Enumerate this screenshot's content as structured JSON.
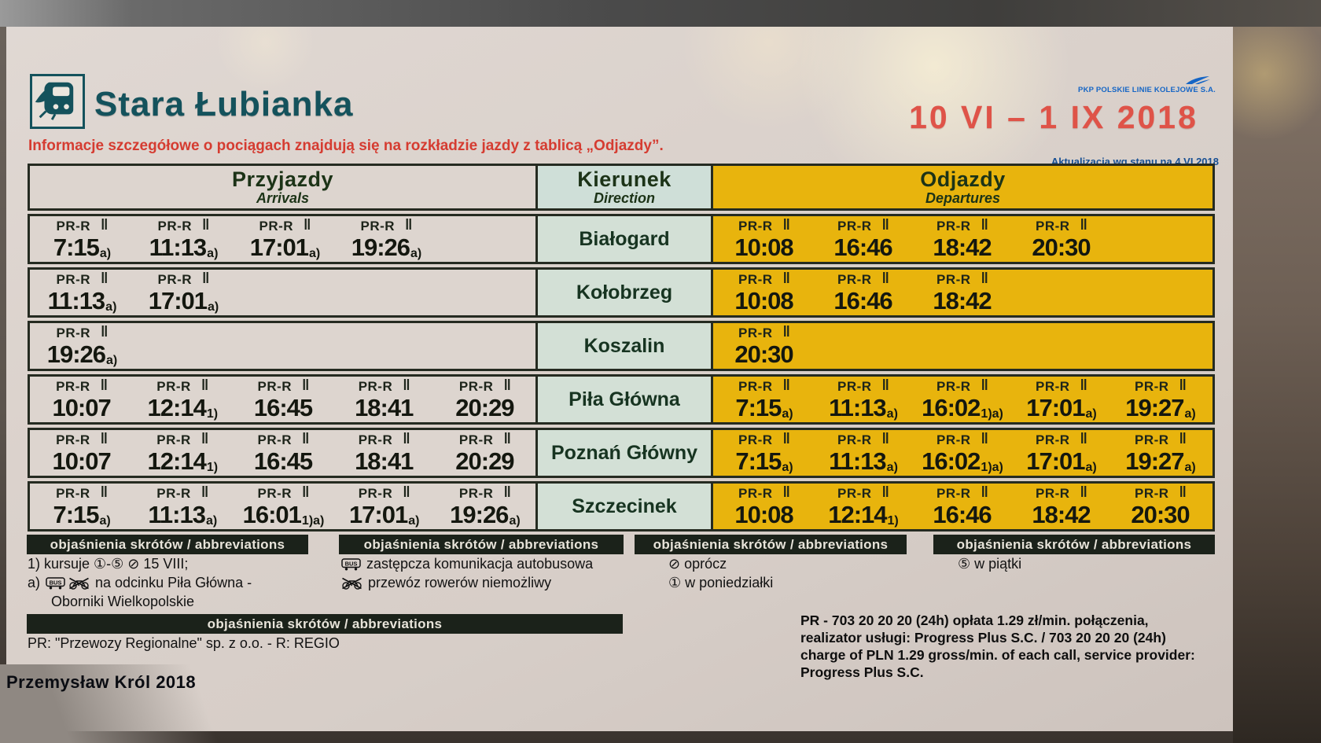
{
  "photo": {
    "watermark": "Przemysław Król 2018"
  },
  "header": {
    "station": "Stara Łubianka",
    "validity": "10 VI – 1 IX 2018",
    "notice": "Informacje szczegółowe o pociągach znajdują się na rozkładzie jazdy z tablicą „Odjazdy”.",
    "pkp_logo_text": "PKP POLSKIE LINIE KOLEJOWE S.A.",
    "update_note": "Aktualizacja wg stanu na 4 VI 2018"
  },
  "table": {
    "columns": {
      "arrivals": {
        "title": "Przyjazdy",
        "subtitle": "Arrivals"
      },
      "direction": {
        "title": "Kierunek",
        "subtitle": "Direction"
      },
      "departures": {
        "title": "Odjazdy",
        "subtitle": "Departures"
      }
    },
    "train_label": "PR-R",
    "train_symbol": "‖",
    "rows": [
      {
        "direction": "Białogard",
        "arrivals": [
          {
            "time": "7:15",
            "fn": "a)"
          },
          {
            "time": "11:13",
            "fn": "a)"
          },
          {
            "time": "17:01",
            "fn": "a)"
          },
          {
            "time": "19:26",
            "fn": "a)"
          }
        ],
        "departures": [
          {
            "time": "10:08",
            "fn": ""
          },
          {
            "time": "16:46",
            "fn": ""
          },
          {
            "time": "18:42",
            "fn": ""
          },
          {
            "time": "20:30",
            "fn": ""
          }
        ]
      },
      {
        "direction": "Kołobrzeg",
        "arrivals": [
          {
            "time": "11:13",
            "fn": "a)"
          },
          {
            "time": "17:01",
            "fn": "a)"
          }
        ],
        "departures": [
          {
            "time": "10:08",
            "fn": ""
          },
          {
            "time": "16:46",
            "fn": ""
          },
          {
            "time": "18:42",
            "fn": ""
          }
        ]
      },
      {
        "direction": "Koszalin",
        "arrivals": [
          {
            "time": "19:26",
            "fn": "a)"
          }
        ],
        "departures": [
          {
            "time": "20:30",
            "fn": ""
          }
        ]
      },
      {
        "direction": "Piła Główna",
        "arrivals": [
          {
            "time": "10:07",
            "fn": ""
          },
          {
            "time": "12:14",
            "fn": "1)"
          },
          {
            "time": "16:45",
            "fn": ""
          },
          {
            "time": "18:41",
            "fn": ""
          },
          {
            "time": "20:29",
            "fn": ""
          }
        ],
        "departures": [
          {
            "time": "7:15",
            "fn": "a)"
          },
          {
            "time": "11:13",
            "fn": "a)"
          },
          {
            "time": "16:02",
            "fn": "1)a)"
          },
          {
            "time": "17:01",
            "fn": "a)"
          },
          {
            "time": "19:27",
            "fn": "a)"
          }
        ]
      },
      {
        "direction": "Poznań Główny",
        "arrivals": [
          {
            "time": "10:07",
            "fn": ""
          },
          {
            "time": "12:14",
            "fn": "1)"
          },
          {
            "time": "16:45",
            "fn": ""
          },
          {
            "time": "18:41",
            "fn": ""
          },
          {
            "time": "20:29",
            "fn": ""
          }
        ],
        "departures": [
          {
            "time": "7:15",
            "fn": "a)"
          },
          {
            "time": "11:13",
            "fn": "a)"
          },
          {
            "time": "16:02",
            "fn": "1)a)"
          },
          {
            "time": "17:01",
            "fn": "a)"
          },
          {
            "time": "19:27",
            "fn": "a)"
          }
        ]
      },
      {
        "direction": "Szczecinek",
        "arrivals": [
          {
            "time": "7:15",
            "fn": "a)"
          },
          {
            "time": "11:13",
            "fn": "a)"
          },
          {
            "time": "16:01",
            "fn": "1)a)"
          },
          {
            "time": "17:01",
            "fn": "a)"
          },
          {
            "time": "19:26",
            "fn": "a)"
          }
        ],
        "departures": [
          {
            "time": "10:08",
            "fn": ""
          },
          {
            "time": "12:14",
            "fn": "1)"
          },
          {
            "time": "16:46",
            "fn": ""
          },
          {
            "time": "18:42",
            "fn": ""
          },
          {
            "time": "20:30",
            "fn": ""
          }
        ]
      }
    ]
  },
  "legend_blocks": [
    {
      "title": "objaśnienia skrótów / abbreviations",
      "lines": [
        {
          "seg": [
            {
              "t": "1) kursuje ①-⑤ ⊘ 15 VIII;"
            }
          ]
        },
        {
          "seg": [
            {
              "t": "a) "
            },
            {
              "i": "bus-icon"
            },
            {
              "t": " "
            },
            {
              "i": "no-bicycle-icon"
            },
            {
              "t": " na odcinku Piła Główna -"
            }
          ]
        },
        {
          "seg": [
            {
              "t": "Oborniki Wielkopolskie"
            }
          ],
          "indent": true
        }
      ]
    },
    {
      "title": "objaśnienia skrótów / abbreviations",
      "lines": [
        {
          "seg": [
            {
              "i": "bus-icon"
            },
            {
              "t": " zastępcza komunikacja autobusowa"
            }
          ]
        },
        {
          "seg": [
            {
              "i": "no-bicycle-icon"
            },
            {
              "t": " przewóz rowerów niemożliwy"
            }
          ]
        }
      ]
    },
    {
      "title": "objaśnienia skrótów / abbreviations",
      "lines": [
        {
          "seg": [
            {
              "t": "⊘ oprócz"
            }
          ]
        },
        {
          "seg": [
            {
              "t": "① w poniedziałki"
            }
          ]
        }
      ]
    },
    {
      "title": "objaśnienia skrótów / abbreviations",
      "lines": [
        {
          "seg": [
            {
              "t": "⑤ w piątki"
            }
          ]
        }
      ]
    },
    {
      "title": "objaśnienia skrótów / abbreviations",
      "lines": [
        {
          "seg": [
            {
              "t": "PR: \"Przewozy Regionalne\" sp. z o.o. - R: REGIO"
            }
          ]
        }
      ]
    }
  ],
  "footer": {
    "lines": [
      "PR - 703 20 20 20 (24h) opłata 1.29 zł/min. połączenia,",
      "realizator usługi: Progress Plus S.C.  / 703 20 20 20 (24h)",
      "charge of PLN 1.29 gross/min. of each call, service provider:",
      "Progress Plus S.C."
    ]
  },
  "colors": {
    "departures_yellow": "#e8b40d",
    "direction_mint": "#d3e0d6",
    "paper": "#d9d1cb",
    "table_border": "#252b21",
    "station_teal": "#14525c",
    "notice_red": "#d53c31",
    "validity_red": "#df5348",
    "pkp_blue": "#1565c5",
    "update_blue": "#174f93",
    "legend_bar": "#1b221a"
  }
}
